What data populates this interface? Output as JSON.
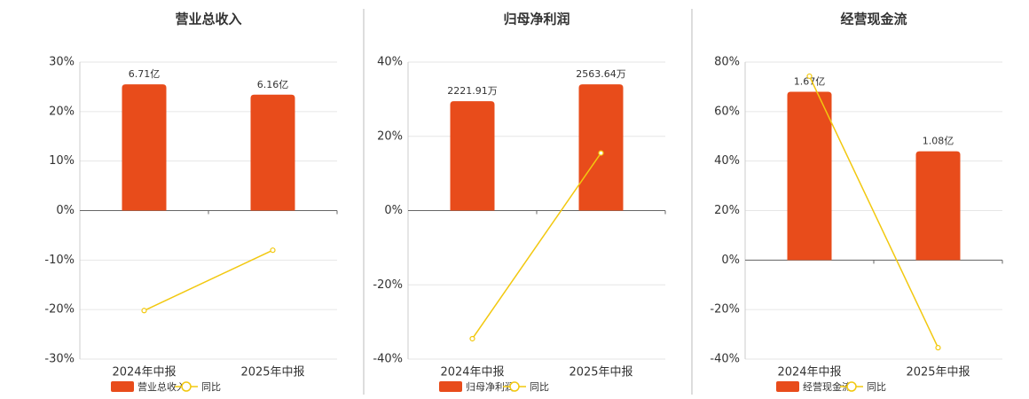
{
  "chart_data": [
    {
      "type": "bar-line",
      "title": "营业总收入",
      "categories": [
        "2024年中报",
        "2025年中报"
      ],
      "series": [
        {
          "name": "营业总收入",
          "kind": "bar",
          "color": "#e84c1b",
          "values": [
            6.71,
            6.16
          ],
          "value_labels": [
            "6.71亿",
            "6.16亿"
          ]
        },
        {
          "name": "同比",
          "kind": "line",
          "color": "#f2c80f",
          "values": [
            -20.2,
            -8.0
          ]
        }
      ],
      "ylim": [
        -30,
        30
      ],
      "yticks": [
        {
          "value": -30,
          "label": "-30%"
        },
        {
          "value": -20,
          "label": "-20%"
        },
        {
          "value": -10,
          "label": "-10%"
        },
        {
          "value": 0,
          "label": "0%"
        },
        {
          "value": 10,
          "label": "10%"
        },
        {
          "value": 20,
          "label": "20%"
        },
        {
          "value": 30,
          "label": "30%"
        }
      ],
      "grid": true
    },
    {
      "type": "bar-line",
      "title": "归母净利润",
      "categories": [
        "2024年中报",
        "2025年中报"
      ],
      "series": [
        {
          "name": "归母净利润",
          "kind": "bar",
          "color": "#e84c1b",
          "values": [
            2221.91,
            2563.64
          ],
          "value_labels": [
            "2221.91万",
            "2563.64万"
          ]
        },
        {
          "name": "同比",
          "kind": "line",
          "color": "#f2c80f",
          "values": [
            -34.5,
            15.5
          ]
        }
      ],
      "ylim": [
        -40,
        40
      ],
      "yticks": [
        {
          "value": -40,
          "label": "-40%"
        },
        {
          "value": -20,
          "label": "-20%"
        },
        {
          "value": 0,
          "label": "0%"
        },
        {
          "value": 20,
          "label": "20%"
        },
        {
          "value": 40,
          "label": "40%"
        }
      ],
      "grid": true
    },
    {
      "type": "bar-line",
      "title": "经营现金流",
      "categories": [
        "2024年中报",
        "2025年中报"
      ],
      "series": [
        {
          "name": "经营现金流",
          "kind": "bar",
          "color": "#e84c1b",
          "values": [
            1.67,
            1.08
          ],
          "value_labels": [
            "1.67亿",
            "1.08亿"
          ]
        },
        {
          "name": "同比",
          "kind": "line",
          "color": "#f2c80f",
          "values": [
            74.3,
            -35.4
          ]
        }
      ],
      "ylim": [
        -40,
        80
      ],
      "yticks": [
        {
          "value": -40,
          "label": "-40%"
        },
        {
          "value": -20,
          "label": "-20%"
        },
        {
          "value": 0,
          "label": "0%"
        },
        {
          "value": 20,
          "label": "20%"
        },
        {
          "value": 40,
          "label": "40%"
        },
        {
          "value": 60,
          "label": "60%"
        },
        {
          "value": 80,
          "label": "80%"
        }
      ],
      "grid": true
    }
  ]
}
